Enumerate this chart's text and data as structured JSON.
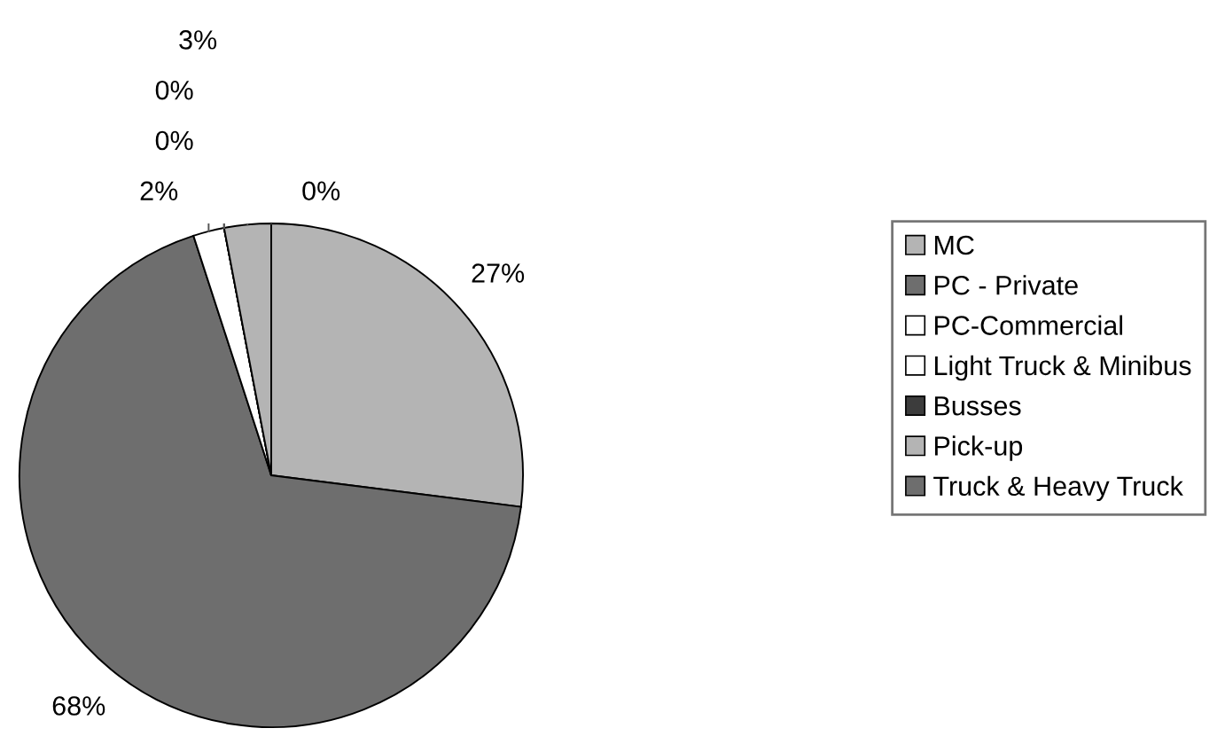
{
  "chart_data": {
    "type": "pie",
    "categories": [
      "MC",
      "PC - Private",
      "PC-Commercial",
      "Light Truck & Minibus",
      "Busses",
      "Pick-up",
      "Truck & Heavy Truck"
    ],
    "values": [
      27,
      68,
      2,
      0,
      0,
      3,
      0
    ],
    "value_labels": [
      "27%",
      "68%",
      "2%",
      "0%",
      "0%",
      "3%",
      "0%"
    ],
    "colors": [
      "#b4b4b4",
      "#6e6e6e",
      "#ffffff",
      "#ffffff",
      "#3c3c3c",
      "#b4b4b4",
      "#6e6e6e"
    ],
    "legend": "right"
  }
}
